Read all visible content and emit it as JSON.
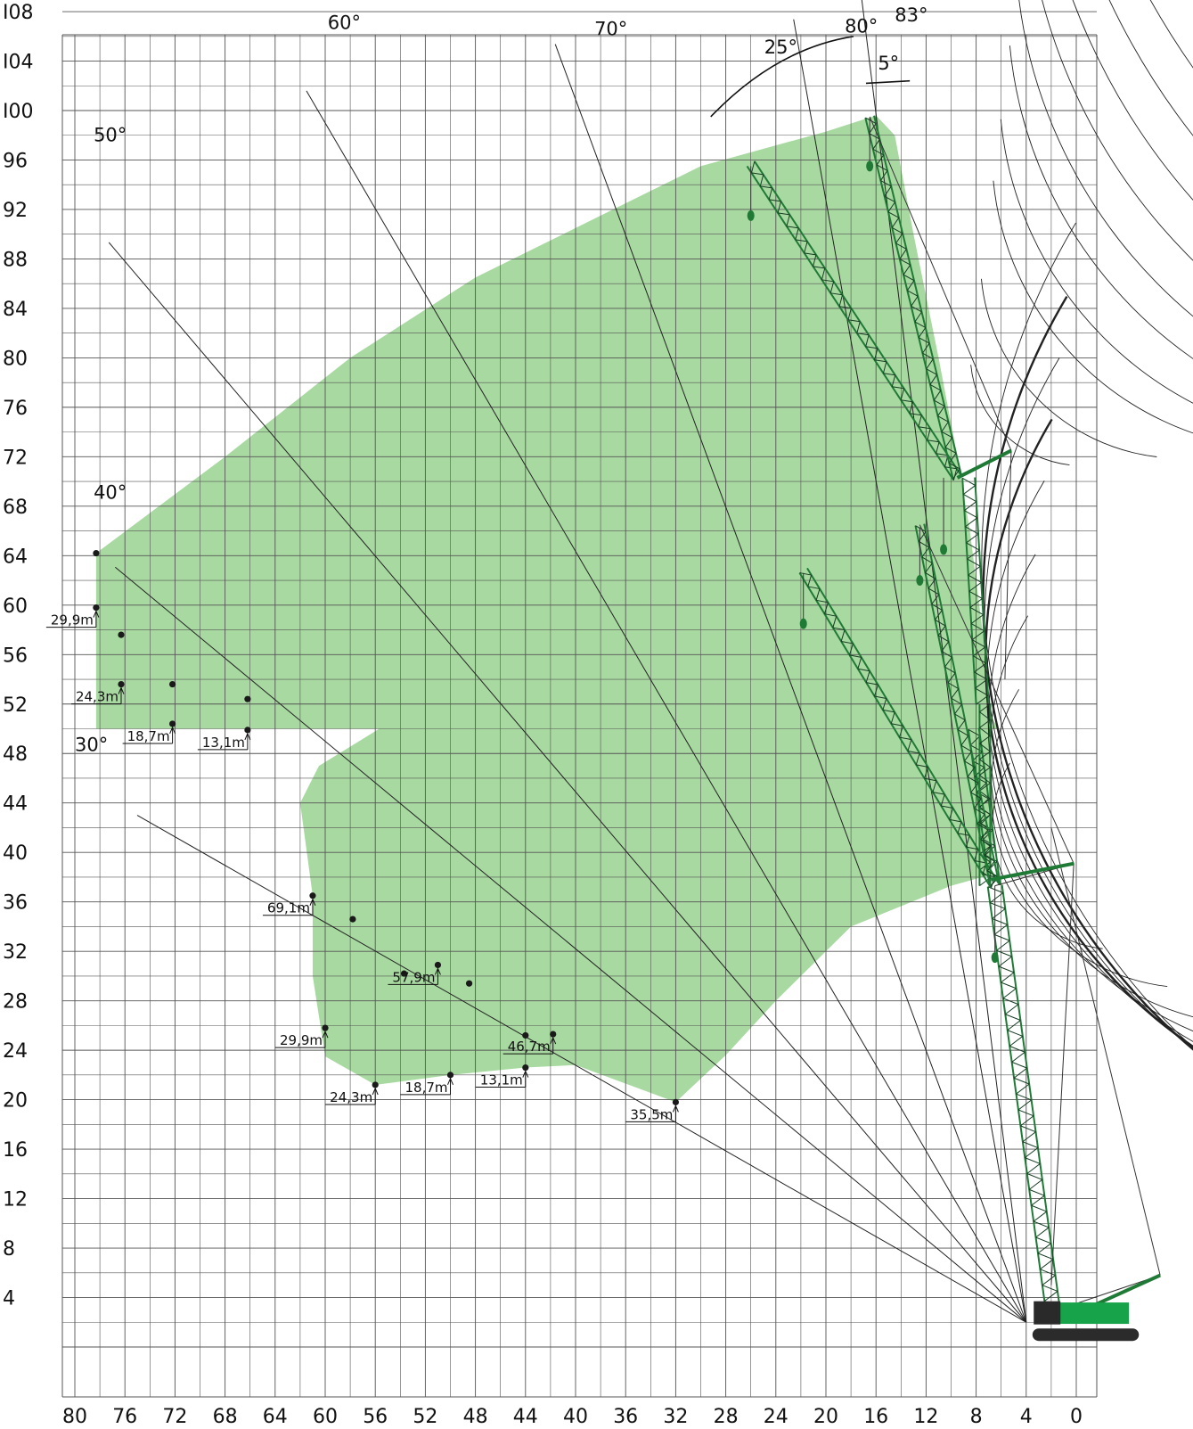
{
  "chart_data": {
    "type": "crane-working-range",
    "x_ticks": [
      "80",
      "76",
      "72",
      "68",
      "64",
      "60",
      "56",
      "52",
      "48",
      "44",
      "40",
      "36",
      "32",
      "28",
      "24",
      "20",
      "16",
      "12",
      "8",
      "4",
      "0"
    ],
    "y_ticks": [
      "I08",
      "I04",
      "I00",
      "96",
      "92",
      "88",
      "84",
      "80",
      "76",
      "72",
      "68",
      "64",
      "60",
      "56",
      "52",
      "48",
      "44",
      "40",
      "36",
      "32",
      "28",
      "24",
      "20",
      "16",
      "12",
      "8",
      "4"
    ],
    "xlim": [
      82,
      0
    ],
    "ylim": [
      0,
      108
    ],
    "grid": true,
    "boom_angles": [
      {
        "label": "30°",
        "deg": 30
      },
      {
        "label": "40°",
        "deg": 40
      },
      {
        "label": "50°",
        "deg": 50
      },
      {
        "label": "60°",
        "deg": 60
      },
      {
        "label": "70°",
        "deg": 70
      },
      {
        "label": "80°",
        "deg": 80
      },
      {
        "label": "83°",
        "deg": 83
      }
    ],
    "luffing_span_labels": [
      "25°",
      "5°"
    ],
    "upper_jib_labels": [
      {
        "text": "29,9m",
        "x": 78.3,
        "y": 59.8
      },
      {
        "text": "24,3m",
        "x": 76.3,
        "y": 53.6
      },
      {
        "text": "18,7m",
        "x": 72.2,
        "y": 50.4
      },
      {
        "text": "13,1m",
        "x": 66.2,
        "y": 49.9
      }
    ],
    "lower_jib_labels": [
      {
        "text": "69,1m",
        "x": 61.0,
        "y": 36.5
      },
      {
        "text": "57,9m",
        "x": 51.0,
        "y": 30.9
      },
      {
        "text": "46,7m",
        "x": 41.8,
        "y": 25.3
      },
      {
        "text": "35,5m",
        "x": 32.0,
        "y": 19.8
      },
      {
        "text": "29,9m",
        "x": 60.0,
        "y": 25.8
      },
      {
        "text": "24,3m",
        "x": 56.0,
        "y": 21.2
      },
      {
        "text": "18,7m",
        "x": 50.0,
        "y": 22.0
      },
      {
        "text": "13,1m",
        "x": 44.0,
        "y": 22.6
      }
    ],
    "extra_points": [
      {
        "x": 76.3,
        "y": 57.6
      },
      {
        "x": 72.2,
        "y": 53.6
      },
      {
        "x": 66.2,
        "y": 52.4
      },
      {
        "x": 78.3,
        "y": 64.2
      },
      {
        "x": 57.8,
        "y": 34.6
      },
      {
        "x": 53.7,
        "y": 30.2
      },
      {
        "x": 48.5,
        "y": 29.4
      },
      {
        "x": 44.0,
        "y": 25.2
      }
    ]
  },
  "colors": {
    "area": "#a8d9a1",
    "grid": "#555555",
    "crane": "#1f7a36",
    "lines": "#222222"
  }
}
